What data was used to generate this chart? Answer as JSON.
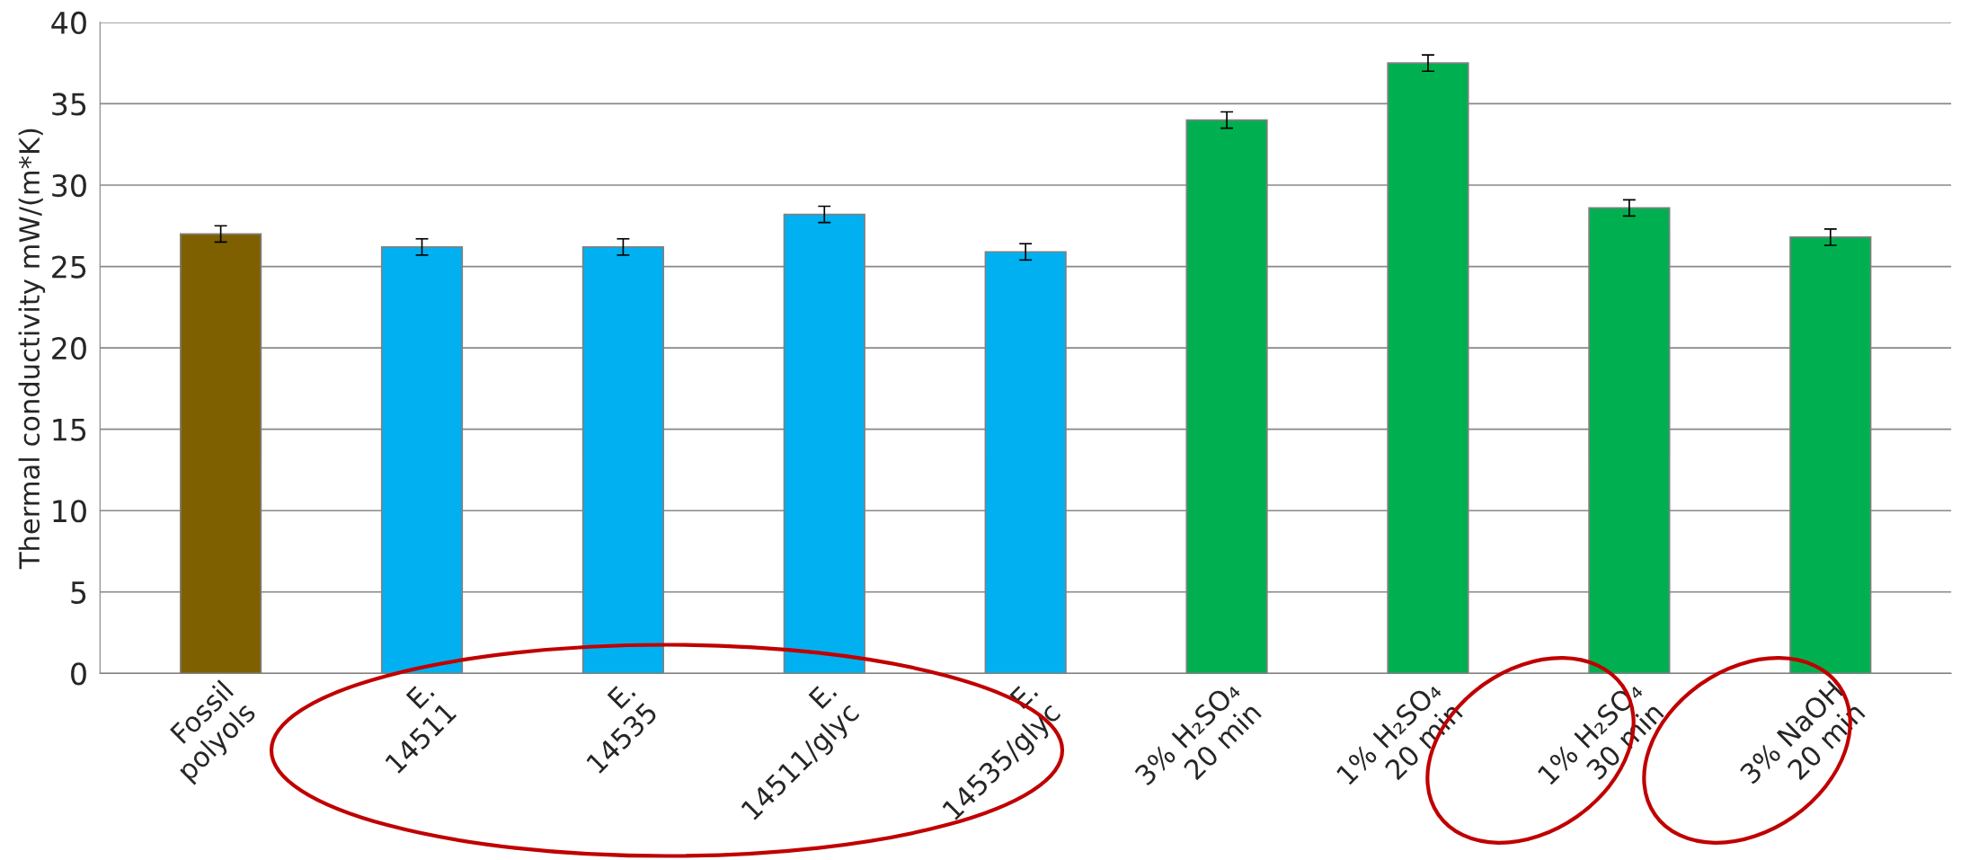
{
  "chart_data": {
    "type": "bar",
    "ylabel": "Thermal conductivity mW/(m*K)",
    "categories": [
      "Fossil\npolyols",
      "E.\n14511",
      "E.\n14535",
      "E.\n14511/glyc",
      "E.\n14535/glyc",
      "3% H₂SO₄\n20 min",
      "1% H₂SO₄\n20 min",
      "1% H₂SO₄\n30 min",
      "3% NaOH\n20 min"
    ],
    "values": [
      27.0,
      26.2,
      26.2,
      28.2,
      25.9,
      34.0,
      37.5,
      28.6,
      26.8
    ],
    "errors": [
      0.5,
      0.5,
      0.5,
      0.5,
      0.5,
      0.5,
      0.5,
      0.5,
      0.5
    ],
    "colors": [
      "#7f6000",
      "#00b0f0",
      "#00b0f0",
      "#00b0f0",
      "#00b0f0",
      "#00b050",
      "#00b050",
      "#00b050",
      "#00b050"
    ],
    "ylim": [
      0,
      40
    ],
    "yticks": [
      0,
      5,
      10,
      15,
      20,
      25,
      30,
      35,
      40
    ],
    "grid": "y"
  }
}
